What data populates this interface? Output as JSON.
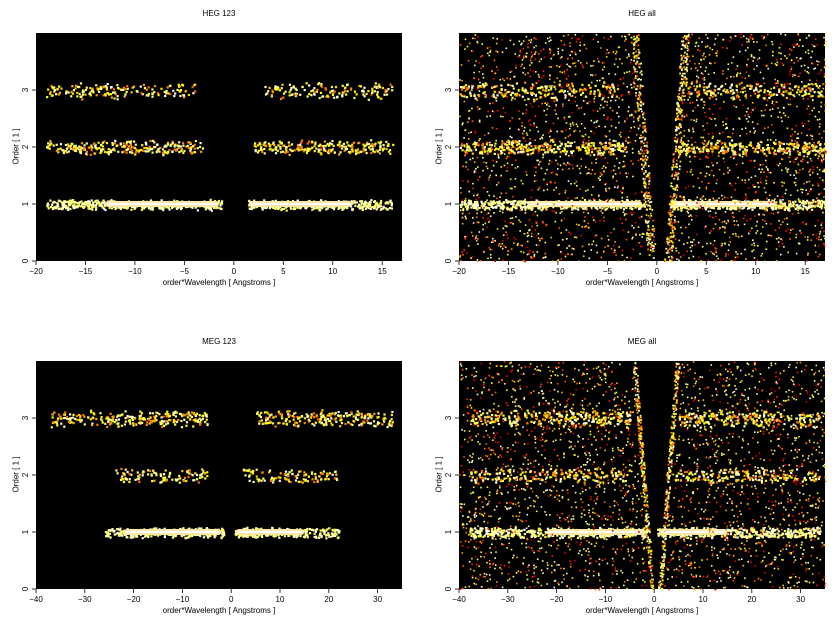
{
  "chart_data": [
    {
      "type": "heatmap",
      "title": "HEG 123",
      "xlabel": "order*Wavelength [ Angstroms ]",
      "ylabel": "Order [ 1 ]",
      "xlim": [
        -20,
        17
      ],
      "ylim": [
        0,
        4
      ],
      "xticks": [
        -20,
        -15,
        -10,
        -5,
        0,
        5,
        10,
        15
      ],
      "yticks": [
        0,
        1,
        2,
        3
      ],
      "colormap": "black-red-yellow-white (heat)",
      "bands": [
        {
          "order": 1,
          "x_ranges": [
            [
              -19,
              -1.3
            ],
            [
              1.3,
              16
            ]
          ],
          "core_ranges": [
            [
              -13,
              -1.5
            ],
            [
              1.5,
              12
            ]
          ],
          "intensity": "high"
        },
        {
          "order": 2,
          "x_ranges": [
            [
              -19,
              -3
            ],
            [
              2,
              16
            ]
          ],
          "intensity": "medium"
        },
        {
          "order": 3,
          "x_ranges": [
            [
              -19,
              -4
            ],
            [
              3,
              16
            ]
          ],
          "intensity": "low"
        }
      ]
    },
    {
      "type": "heatmap",
      "title": "HEG all",
      "xlabel": "order*Wavelength [ Angstroms ]",
      "ylabel": "Order [ 1 ]",
      "xlim": [
        -20,
        17
      ],
      "ylim": [
        0,
        4
      ],
      "xticks": [
        -20,
        -15,
        -10,
        -5,
        0,
        5,
        10,
        15
      ],
      "yticks": [
        0,
        1,
        2,
        3
      ],
      "colormap": "black-red-yellow-white (heat)",
      "bands": [
        {
          "order": 1,
          "x_ranges": [
            [
              -20,
              -1.3
            ],
            [
              1.3,
              17
            ]
          ],
          "core_ranges": [
            [
              -13,
              -1.5
            ],
            [
              1.5,
              12
            ]
          ],
          "intensity": "high"
        },
        {
          "order": 2,
          "x_ranges": [
            [
              -20,
              -3
            ],
            [
              2,
              17
            ]
          ],
          "intensity": "medium"
        },
        {
          "order": 3,
          "x_ranges": [
            [
              -20,
              -4
            ],
            [
              3,
              17
            ]
          ],
          "intensity": "low"
        }
      ],
      "background": "scattered events outside a V-shaped empty wedge near 0"
    },
    {
      "type": "heatmap",
      "title": "MEG 123",
      "xlabel": "order*Wavelength [ Angstroms ]",
      "ylabel": "Order [ 1 ]",
      "xlim": [
        -40,
        35
      ],
      "ylim": [
        0,
        4
      ],
      "xticks": [
        -40,
        -30,
        -20,
        -10,
        0,
        10,
        20,
        30
      ],
      "yticks": [
        0,
        1,
        2,
        3
      ],
      "colormap": "black-red-yellow-white (heat)",
      "bands": [
        {
          "order": 1,
          "x_ranges": [
            [
              -26,
              -1.5
            ],
            [
              0.5,
              22
            ]
          ],
          "core_ranges": [
            [
              -22,
              -2
            ],
            [
              1,
              15
            ]
          ],
          "intensity": "high"
        },
        {
          "order": 2,
          "x_ranges": [
            [
              -24,
              -5
            ],
            [
              2,
              22
            ]
          ],
          "intensity": "low"
        },
        {
          "order": 3,
          "x_ranges": [
            [
              -37,
              -5
            ],
            [
              5,
              33
            ]
          ],
          "intensity": "medium"
        }
      ]
    },
    {
      "type": "heatmap",
      "title": "MEG all",
      "xlabel": "order*Wavelength [ Angstroms ]",
      "ylabel": "Order [ 1 ]",
      "xlim": [
        -40,
        35
      ],
      "ylim": [
        0,
        4
      ],
      "xticks": [
        -40,
        -30,
        -20,
        -10,
        0,
        10,
        20,
        30
      ],
      "yticks": [
        0,
        1,
        2,
        3
      ],
      "colormap": "black-red-yellow-white (heat)",
      "bands": [
        {
          "order": 1,
          "x_ranges": [
            [
              -38,
              -1.5
            ],
            [
              0.5,
              34
            ]
          ],
          "core_ranges": [
            [
              -22,
              -2
            ],
            [
              1,
              15
            ]
          ],
          "intensity": "high"
        },
        {
          "order": 2,
          "x_ranges": [
            [
              -38,
              -5
            ],
            [
              2,
              34
            ]
          ],
          "intensity": "low"
        },
        {
          "order": 3,
          "x_ranges": [
            [
              -38,
              -5
            ],
            [
              5,
              34
            ]
          ],
          "intensity": "medium"
        }
      ],
      "background": "scattered events outside a V-shaped empty wedge near 0"
    }
  ]
}
